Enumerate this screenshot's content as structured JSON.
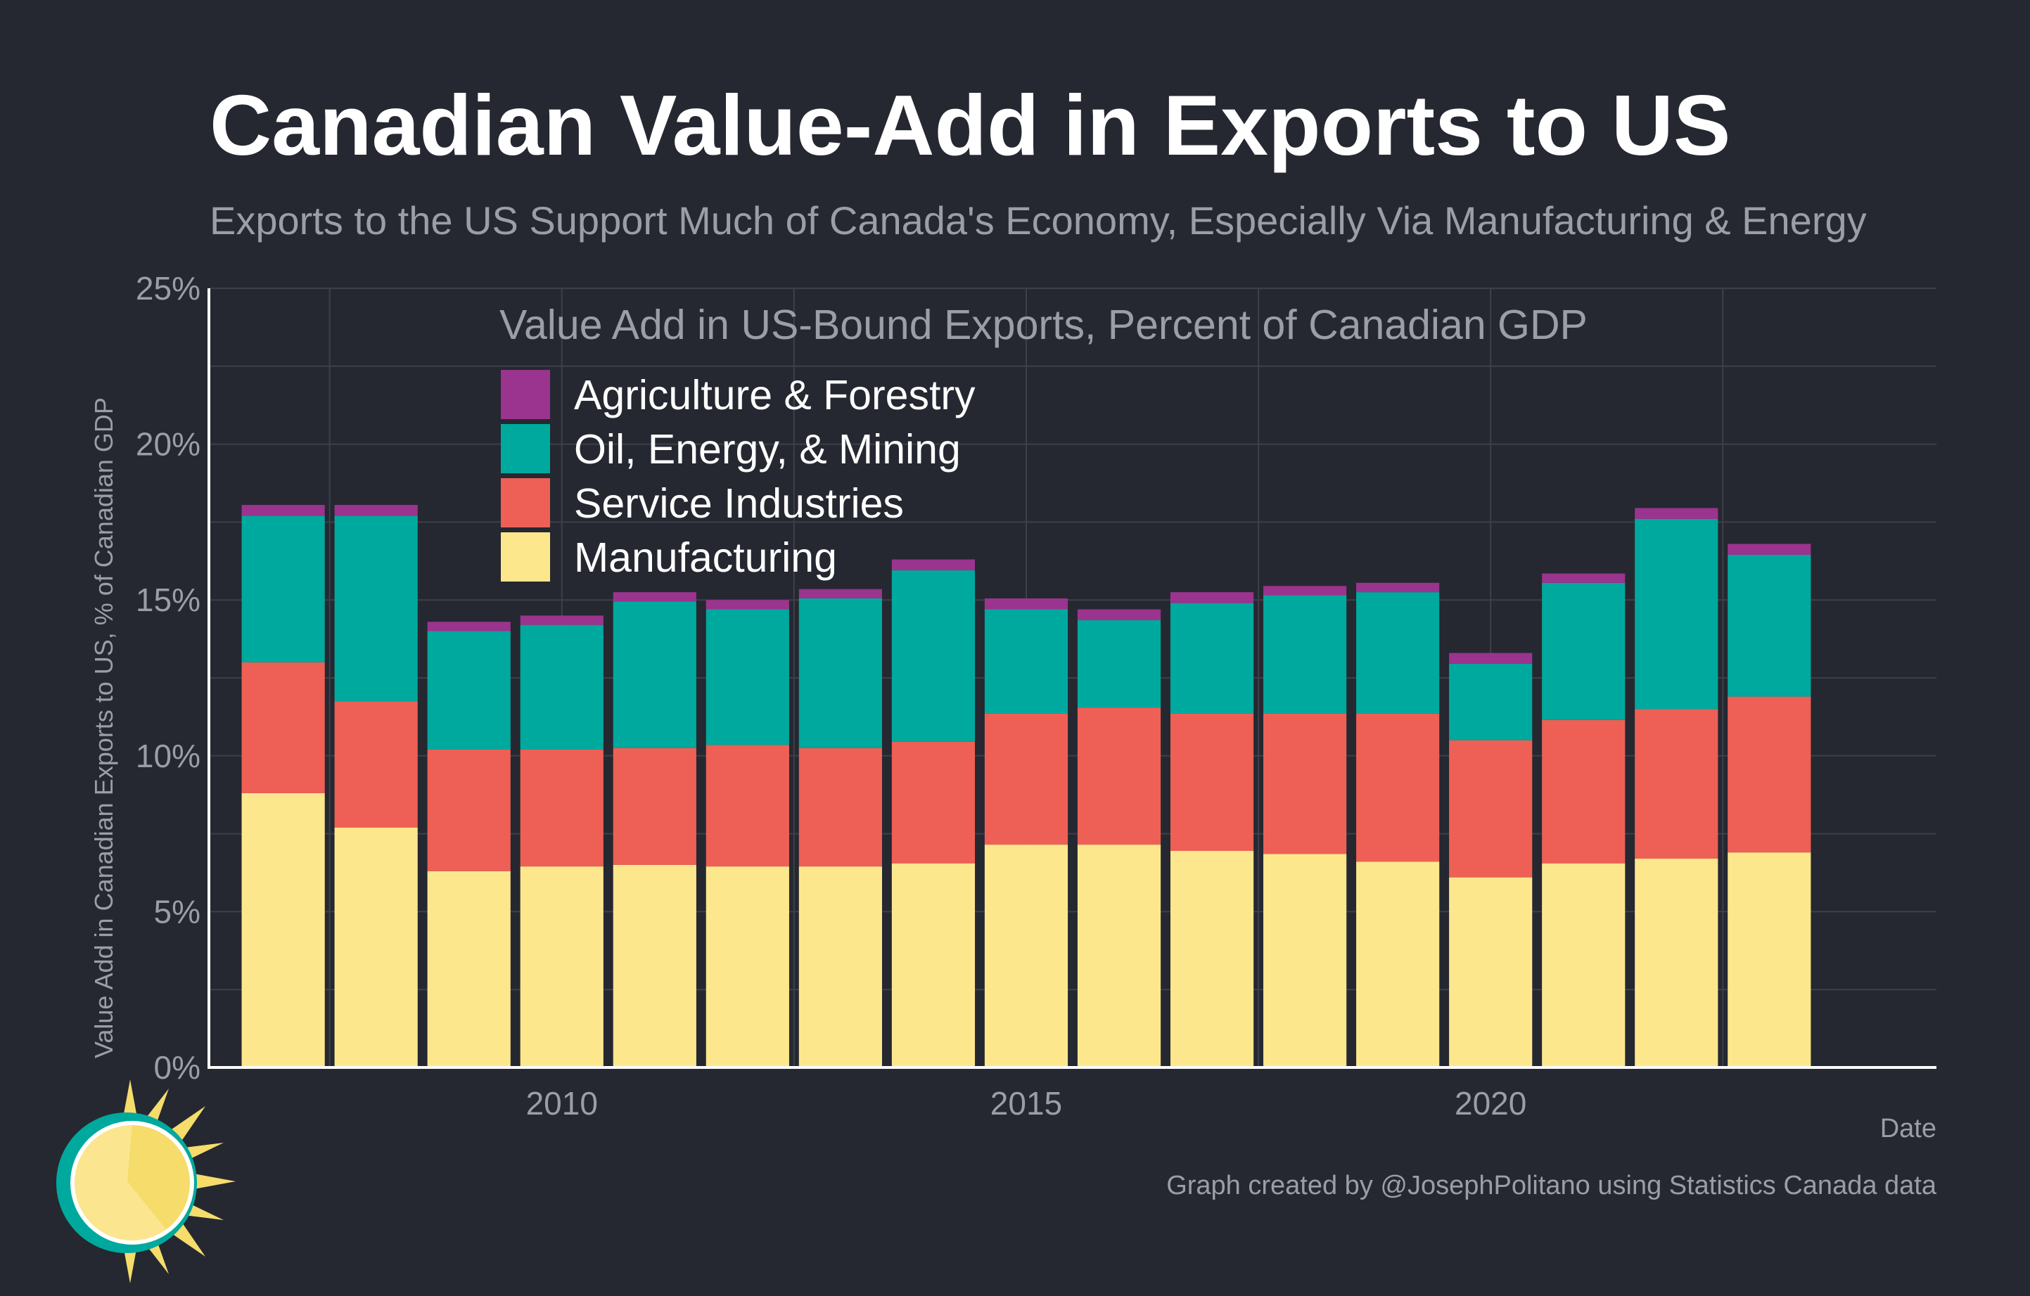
{
  "header": {
    "title": "Canadian Value-Add in Exports to US",
    "subtitle": "Exports to the US Support Much of Canada's Economy, Especially Via Manufacturing & Energy"
  },
  "footer": {
    "caption": "Graph created by @JosephPolitano using Statistics Canada data"
  },
  "logo": {
    "icon": "sun-clock-logo-icon"
  },
  "chart_data": {
    "type": "bar",
    "stacked": true,
    "title": "Value Add in US-Bound Exports, Percent of Canadian GDP",
    "xlabel": "Date",
    "ylabel": "Value Add in Canadian Exports to US, % of Canadian GDP",
    "ylim": [
      0,
      25
    ],
    "yticks": [
      0,
      5,
      10,
      15,
      20,
      25
    ],
    "ytick_labels": [
      "0%",
      "5%",
      "10%",
      "15%",
      "20%",
      "25%"
    ],
    "xticks": [
      2010,
      2015,
      2020
    ],
    "xlim": [
      2006.2,
      2024.8
    ],
    "grid": true,
    "legend_position": "top-left",
    "x": [
      2007,
      2008,
      2009,
      2010,
      2011,
      2012,
      2013,
      2014,
      2015,
      2016,
      2017,
      2018,
      2019,
      2020,
      2021,
      2022,
      2023
    ],
    "series": [
      {
        "name": "Manufacturing",
        "color": "#fde78d",
        "values": [
          8.8,
          7.7,
          6.3,
          6.45,
          6.5,
          6.45,
          6.45,
          6.55,
          7.15,
          7.15,
          6.95,
          6.85,
          6.6,
          6.1,
          6.55,
          6.7,
          6.9
        ]
      },
      {
        "name": "Service Industries",
        "color": "#ee6055",
        "values": [
          4.2,
          4.05,
          3.9,
          3.75,
          3.75,
          3.9,
          3.8,
          3.9,
          4.2,
          4.4,
          4.4,
          4.5,
          4.75,
          4.4,
          4.6,
          4.8,
          5.0
        ]
      },
      {
        "name": "Oil, Energy, & Mining",
        "color": "#00a99d",
        "values": [
          4.7,
          5.95,
          3.8,
          4.0,
          4.7,
          4.35,
          4.8,
          5.5,
          3.35,
          2.8,
          3.55,
          3.8,
          3.9,
          2.45,
          4.4,
          6.1,
          4.55
        ]
      },
      {
        "name": "Agriculture & Forestry",
        "color": "#9a348e",
        "values": [
          0.35,
          0.35,
          0.3,
          0.3,
          0.3,
          0.3,
          0.3,
          0.35,
          0.35,
          0.35,
          0.35,
          0.3,
          0.3,
          0.35,
          0.3,
          0.35,
          0.35
        ]
      }
    ]
  }
}
